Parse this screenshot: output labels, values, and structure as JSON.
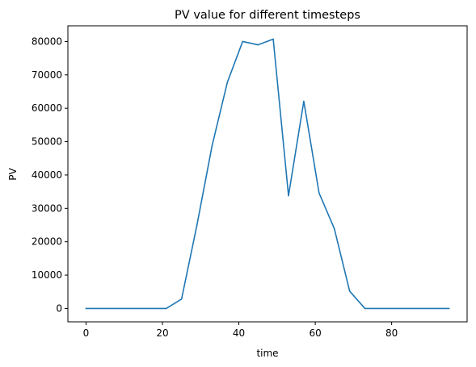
{
  "chart_data": {
    "type": "line",
    "title": "PV value for different timesteps",
    "xlabel": "time",
    "ylabel": "PV",
    "xlim": [
      -4.75,
      99.75
    ],
    "ylim": [
      -4000,
      84700
    ],
    "xticks": [
      0,
      20,
      40,
      60,
      80
    ],
    "xtick_labels": [
      "0",
      "20",
      "40",
      "60",
      "80"
    ],
    "yticks": [
      0,
      10000,
      20000,
      30000,
      40000,
      50000,
      60000,
      70000,
      80000
    ],
    "ytick_labels": [
      "0",
      "10000",
      "20000",
      "30000",
      "40000",
      "50000",
      "60000",
      "70000",
      "80000"
    ],
    "grid": false,
    "color": "#1f77b4",
    "series": [
      {
        "x": [
          0,
          21,
          25,
          29,
          33,
          37,
          41,
          45,
          49,
          53,
          57,
          61,
          65,
          69,
          73,
          95
        ],
        "y": [
          0,
          0,
          2800,
          24800,
          48800,
          67800,
          80000,
          79000,
          80700,
          33800,
          62100,
          34600,
          23900,
          5200,
          0,
          0
        ]
      }
    ]
  }
}
